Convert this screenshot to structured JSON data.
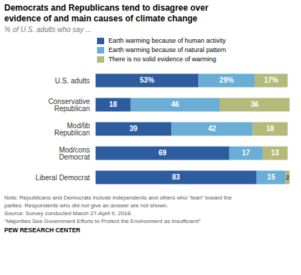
{
  "chart_data": {
    "type": "bar",
    "orientation": "horizontal",
    "stacked": true,
    "title": "Democrats and Republicans tend to disagree over\nevidence of and main causes of climate change",
    "subtitle": "% of U.S. adults who say ...",
    "categories": [
      "U.S. adults",
      "Conservative Republican",
      "Mod/lib Republican",
      "Mod/cons Democrat",
      "Liberal Democrat"
    ],
    "series": [
      {
        "name": "Earth warming because of human activity",
        "color": "#2E5D9F",
        "values": [
          53,
          18,
          39,
          69,
          83
        ],
        "value_labels": [
          "53%",
          "18",
          "39",
          "69",
          "83"
        ]
      },
      {
        "name": "Earth warming because of natural pattern",
        "color": "#6aadd5",
        "values": [
          29,
          46,
          42,
          17,
          15
        ],
        "value_labels": [
          "29%",
          "46",
          "42",
          "17",
          "15"
        ]
      },
      {
        "name": "There is no solid evidence of warming",
        "color": "#b5b97a",
        "values": [
          17,
          36,
          18,
          13,
          2
        ],
        "value_labels": [
          "17%",
          "36",
          "18",
          "13",
          "2"
        ]
      }
    ],
    "xlim": [
      0,
      100
    ],
    "data_labels": true,
    "tick_labels": "y",
    "grid": false,
    "legend": "top",
    "annotations": [
      "Note: Republicans and Democrats include independents and others who “lean” toward the",
      "parties. Respondents who did not give an answer are not shown.",
      "Source: Survey conducted March 27-April 9, 2018.",
      "“Majorities See Government Efforts to Protect the Environment as Insufficient”",
      "PEW RESEARCH CENTER"
    ]
  }
}
